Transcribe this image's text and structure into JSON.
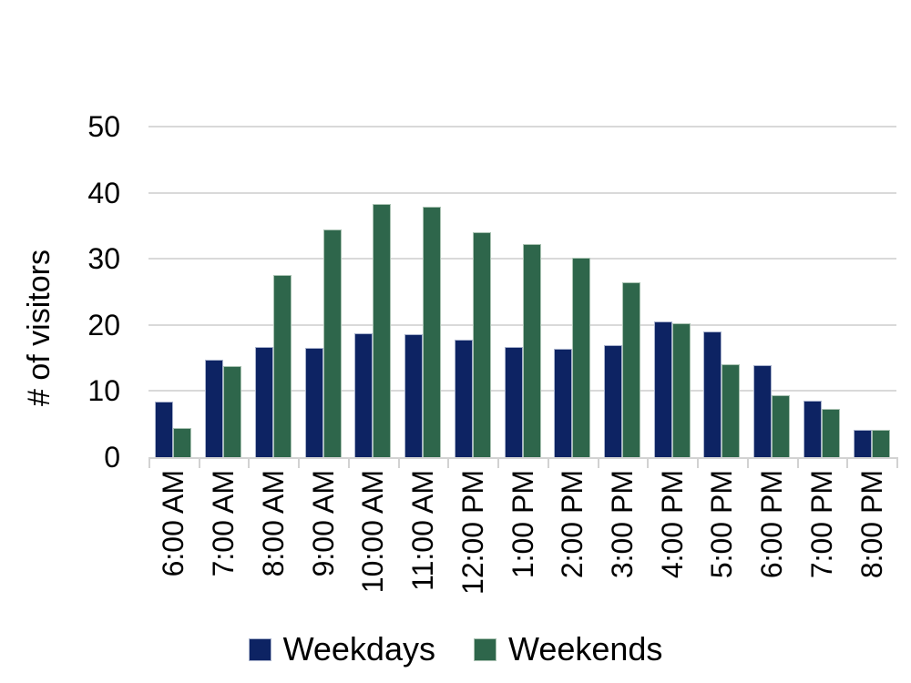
{
  "chart_data": {
    "type": "bar",
    "title": "",
    "xlabel": "",
    "ylabel": "# of visitors",
    "ylim": [
      0,
      50
    ],
    "yticks": [
      0,
      10,
      20,
      30,
      40,
      50
    ],
    "grid": "horizontal",
    "legend_position": "bottom",
    "categories": [
      "6:00 AM",
      "7:00 AM",
      "8:00 AM",
      "9:00 AM",
      "10:00 AM",
      "11:00 AM",
      "12:00 PM",
      "1:00 PM",
      "2:00 PM",
      "3:00 PM",
      "4:00 PM",
      "5:00 PM",
      "6:00 PM",
      "7:00 PM",
      "8:00 PM"
    ],
    "series": [
      {
        "name": "Weekdays",
        "color": "#0d2363",
        "border_color": "#a8b2cc",
        "values": [
          8.4,
          14.7,
          16.7,
          16.5,
          18.7,
          18.6,
          17.7,
          16.6,
          16.4,
          17.0,
          20.5,
          19.0,
          13.9,
          8.5,
          4.1
        ]
      },
      {
        "name": "Weekends",
        "color": "#2e664b",
        "border_color": "#a9c2b2",
        "values": [
          4.4,
          13.8,
          27.6,
          34.4,
          38.3,
          37.9,
          34.0,
          32.3,
          30.2,
          26.4,
          20.3,
          14.0,
          9.4,
          7.3,
          4.1
        ]
      }
    ]
  },
  "colors": {
    "gridline": "#d9d9d9",
    "axis_line": "#d2d2d2",
    "text": "#000000",
    "background": "#ffffff"
  }
}
